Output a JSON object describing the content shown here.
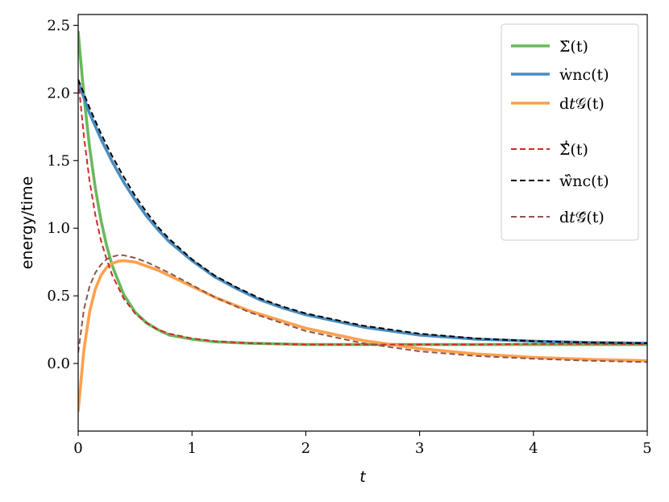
{
  "chart_data": {
    "type": "line",
    "title": "",
    "xlabel": "t",
    "ylabel": "energy/time",
    "xlim": [
      0,
      5
    ],
    "ylim": [
      -0.5,
      2.58
    ],
    "xticks": [
      0,
      1,
      2,
      3,
      4,
      5
    ],
    "yticks": [
      0.0,
      0.5,
      1.0,
      1.5,
      2.0,
      2.5
    ],
    "xtick_labels": [
      "0",
      "1",
      "2",
      "3",
      "4",
      "5"
    ],
    "ytick_labels": [
      "0.0",
      "0.5",
      "1.0",
      "1.5",
      "2.0",
      "2.5"
    ],
    "grid": false,
    "legend_position": "top-right",
    "series": [
      {
        "name": "Σ̇(t)",
        "color": "#6ab85d",
        "style": "solid",
        "x": [
          0,
          0.05,
          0.1,
          0.15,
          0.2,
          0.25,
          0.3,
          0.4,
          0.5,
          0.6,
          0.7,
          0.8,
          1.0,
          1.2,
          1.5,
          2.0,
          2.5,
          3.0,
          3.5,
          4.0,
          4.5,
          5.0
        ],
        "y": [
          2.45,
          1.98,
          1.6,
          1.3,
          1.06,
          0.87,
          0.72,
          0.51,
          0.38,
          0.3,
          0.25,
          0.21,
          0.18,
          0.16,
          0.15,
          0.14,
          0.14,
          0.14,
          0.14,
          0.14,
          0.14,
          0.14
        ]
      },
      {
        "name": "ẇnc(t)",
        "color": "#4a8cbf",
        "style": "solid",
        "x": [
          0,
          0.1,
          0.2,
          0.3,
          0.4,
          0.5,
          0.6,
          0.7,
          0.8,
          1.0,
          1.2,
          1.4,
          1.6,
          1.8,
          2.0,
          2.5,
          3.0,
          3.5,
          4.0,
          4.5,
          5.0
        ],
        "y": [
          2.08,
          1.85,
          1.66,
          1.49,
          1.34,
          1.21,
          1.09,
          0.99,
          0.9,
          0.76,
          0.64,
          0.55,
          0.47,
          0.41,
          0.36,
          0.27,
          0.21,
          0.18,
          0.165,
          0.155,
          0.15
        ]
      },
      {
        "name": "d𝑡𝒢(t)",
        "color": "#ffa04d",
        "style": "solid",
        "x": [
          0,
          0.05,
          0.1,
          0.15,
          0.2,
          0.25,
          0.3,
          0.35,
          0.4,
          0.5,
          0.6,
          0.7,
          0.8,
          1.0,
          1.2,
          1.5,
          2.0,
          2.5,
          3.0,
          3.5,
          4.0,
          4.5,
          5.0
        ],
        "y": [
          -0.35,
          0.1,
          0.38,
          0.55,
          0.65,
          0.71,
          0.74,
          0.755,
          0.76,
          0.75,
          0.72,
          0.69,
          0.65,
          0.57,
          0.49,
          0.39,
          0.26,
          0.17,
          0.11,
          0.07,
          0.045,
          0.03,
          0.02
        ]
      },
      {
        "name": "Σ̂̇(t)",
        "color": "#d62728",
        "style": "dashed",
        "x": [
          0,
          0.05,
          0.1,
          0.15,
          0.2,
          0.25,
          0.3,
          0.4,
          0.5,
          0.6,
          0.7,
          0.8,
          1.0,
          1.2,
          1.5,
          2.0,
          2.5,
          3.0,
          3.5,
          4.0,
          4.5,
          5.0
        ],
        "y": [
          2.1,
          1.68,
          1.35,
          1.1,
          0.91,
          0.77,
          0.65,
          0.48,
          0.37,
          0.3,
          0.25,
          0.22,
          0.185,
          0.165,
          0.15,
          0.14,
          0.14,
          0.14,
          0.14,
          0.145,
          0.145,
          0.145
        ]
      },
      {
        "name": "ẇ̂nc(t)",
        "color": "#000000",
        "style": "dashed",
        "x": [
          0,
          0.1,
          0.2,
          0.3,
          0.4,
          0.5,
          0.6,
          0.7,
          0.8,
          1.0,
          1.2,
          1.4,
          1.6,
          1.8,
          2.0,
          2.5,
          3.0,
          3.5,
          4.0,
          4.5,
          5.0
        ],
        "y": [
          2.1,
          1.89,
          1.7,
          1.53,
          1.38,
          1.24,
          1.12,
          1.01,
          0.92,
          0.77,
          0.65,
          0.56,
          0.48,
          0.42,
          0.37,
          0.28,
          0.22,
          0.185,
          0.165,
          0.155,
          0.15
        ]
      },
      {
        "name": "d𝑡𝒢̂(t)",
        "color": "#8c564b",
        "style": "dashed",
        "x": [
          0,
          0.05,
          0.1,
          0.15,
          0.2,
          0.25,
          0.3,
          0.35,
          0.4,
          0.5,
          0.6,
          0.7,
          0.8,
          1.0,
          1.2,
          1.5,
          2.0,
          2.5,
          3.0,
          3.5,
          4.0,
          4.5,
          5.0
        ],
        "y": [
          0.08,
          0.4,
          0.57,
          0.67,
          0.73,
          0.77,
          0.79,
          0.8,
          0.8,
          0.78,
          0.75,
          0.71,
          0.67,
          0.58,
          0.49,
          0.38,
          0.24,
          0.15,
          0.09,
          0.055,
          0.035,
          0.02,
          0.01
        ]
      }
    ]
  }
}
